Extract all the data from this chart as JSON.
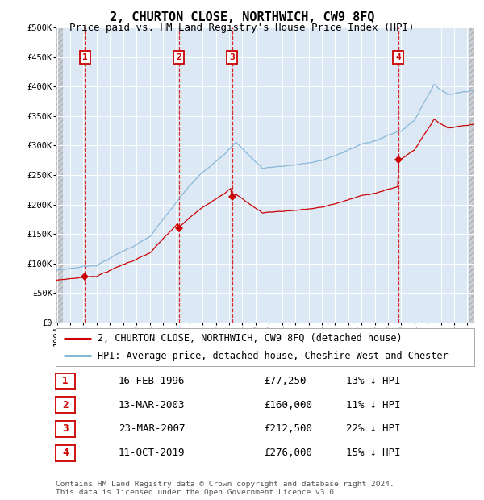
{
  "title": "2, CHURTON CLOSE, NORTHWICH, CW9 8FQ",
  "subtitle": "Price paid vs. HM Land Registry's House Price Index (HPI)",
  "ylim": [
    0,
    500000
  ],
  "yticks": [
    0,
    50000,
    100000,
    150000,
    200000,
    250000,
    300000,
    350000,
    400000,
    450000,
    500000
  ],
  "plot_bg_color": "#dce9f5",
  "grid_color": "#ffffff",
  "sale_points": [
    {
      "date_num": 1996.12,
      "price": 77250,
      "label": "1"
    },
    {
      "date_num": 2003.2,
      "price": 160000,
      "label": "2"
    },
    {
      "date_num": 2007.22,
      "price": 212500,
      "label": "3"
    },
    {
      "date_num": 2019.78,
      "price": 276000,
      "label": "4"
    }
  ],
  "vline_dates": [
    1996.12,
    2003.2,
    2007.22,
    2019.78
  ],
  "legend_entries": [
    "2, CHURTON CLOSE, NORTHWICH, CW9 8FQ (detached house)",
    "HPI: Average price, detached house, Cheshire West and Chester"
  ],
  "table_rows": [
    [
      "1",
      "16-FEB-1996",
      "£77,250",
      "13% ↓ HPI"
    ],
    [
      "2",
      "13-MAR-2003",
      "£160,000",
      "11% ↓ HPI"
    ],
    [
      "3",
      "23-MAR-2007",
      "£212,500",
      "22% ↓ HPI"
    ],
    [
      "4",
      "11-OCT-2019",
      "£276,000",
      "15% ↓ HPI"
    ]
  ],
  "footnote": "Contains HM Land Registry data © Crown copyright and database right 2024.\nThis data is licensed under the Open Government Licence v3.0.",
  "red_line_color": "#cc0000",
  "blue_line_color": "#88b8d8",
  "marker_color": "#cc0000",
  "vline_color": "#dd0000",
  "label_box_color": "#ffffff",
  "label_text_color": "#cc0000",
  "title_fontsize": 11,
  "subtitle_fontsize": 9,
  "tick_fontsize": 7.5,
  "legend_fontsize": 8.5,
  "table_fontsize": 9
}
